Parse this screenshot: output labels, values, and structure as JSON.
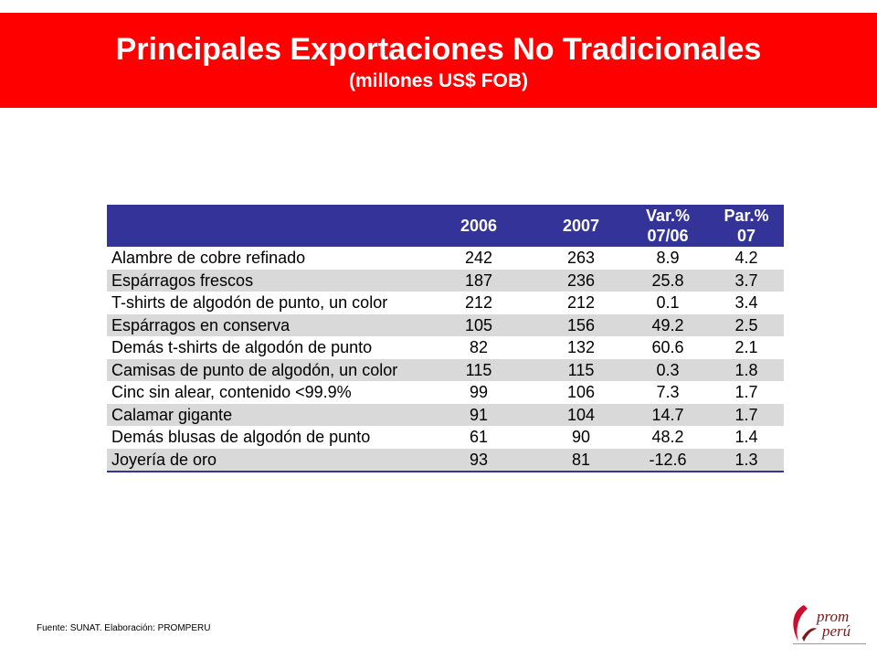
{
  "header": {
    "title": "Principales Exportaciones No Tradicionales",
    "subtitle": "(millones US$ FOB)"
  },
  "table": {
    "columns": [
      "",
      "2006",
      "2007",
      "Var.%",
      "Par.%"
    ],
    "columns_line2": [
      "",
      "",
      "",
      "07/06",
      "07"
    ],
    "rows": [
      [
        "Alambre de cobre refinado",
        "242",
        "263",
        "8.9",
        "4.2"
      ],
      [
        "Espárragos frescos",
        "187",
        "236",
        "25.8",
        "3.7"
      ],
      [
        "T-shirts de algodón de punto, un color",
        "212",
        "212",
        "0.1",
        "3.4"
      ],
      [
        "Espárragos en conserva",
        "105",
        "156",
        "49.2",
        "2.5"
      ],
      [
        "Demás t-shirts de algodón de punto",
        "82",
        "132",
        "60.6",
        "2.1"
      ],
      [
        "Camisas de punto de algodón, un color",
        "115",
        "115",
        "0.3",
        "1.8"
      ],
      [
        "Cinc sin alear, contenido <99.9%",
        "99",
        "106",
        "7.3",
        "1.7"
      ],
      [
        "Calamar gigante",
        "91",
        "104",
        "14.7",
        "1.7"
      ],
      [
        "Demás blusas de algodón de punto",
        "61",
        "90",
        "48.2",
        "1.4"
      ],
      [
        "Joyería de oro",
        "93",
        "81",
        "-12.6",
        "1.3"
      ]
    ]
  },
  "footer": {
    "source": "Fuente: SUNAT.  Elaboración: PROMPERU"
  },
  "logo": {
    "text_line1": "prom",
    "text_line2": "perú"
  },
  "colors": {
    "title_band": "#ff0000",
    "table_header": "#333399",
    "row_alt": "#d9d9d9"
  }
}
